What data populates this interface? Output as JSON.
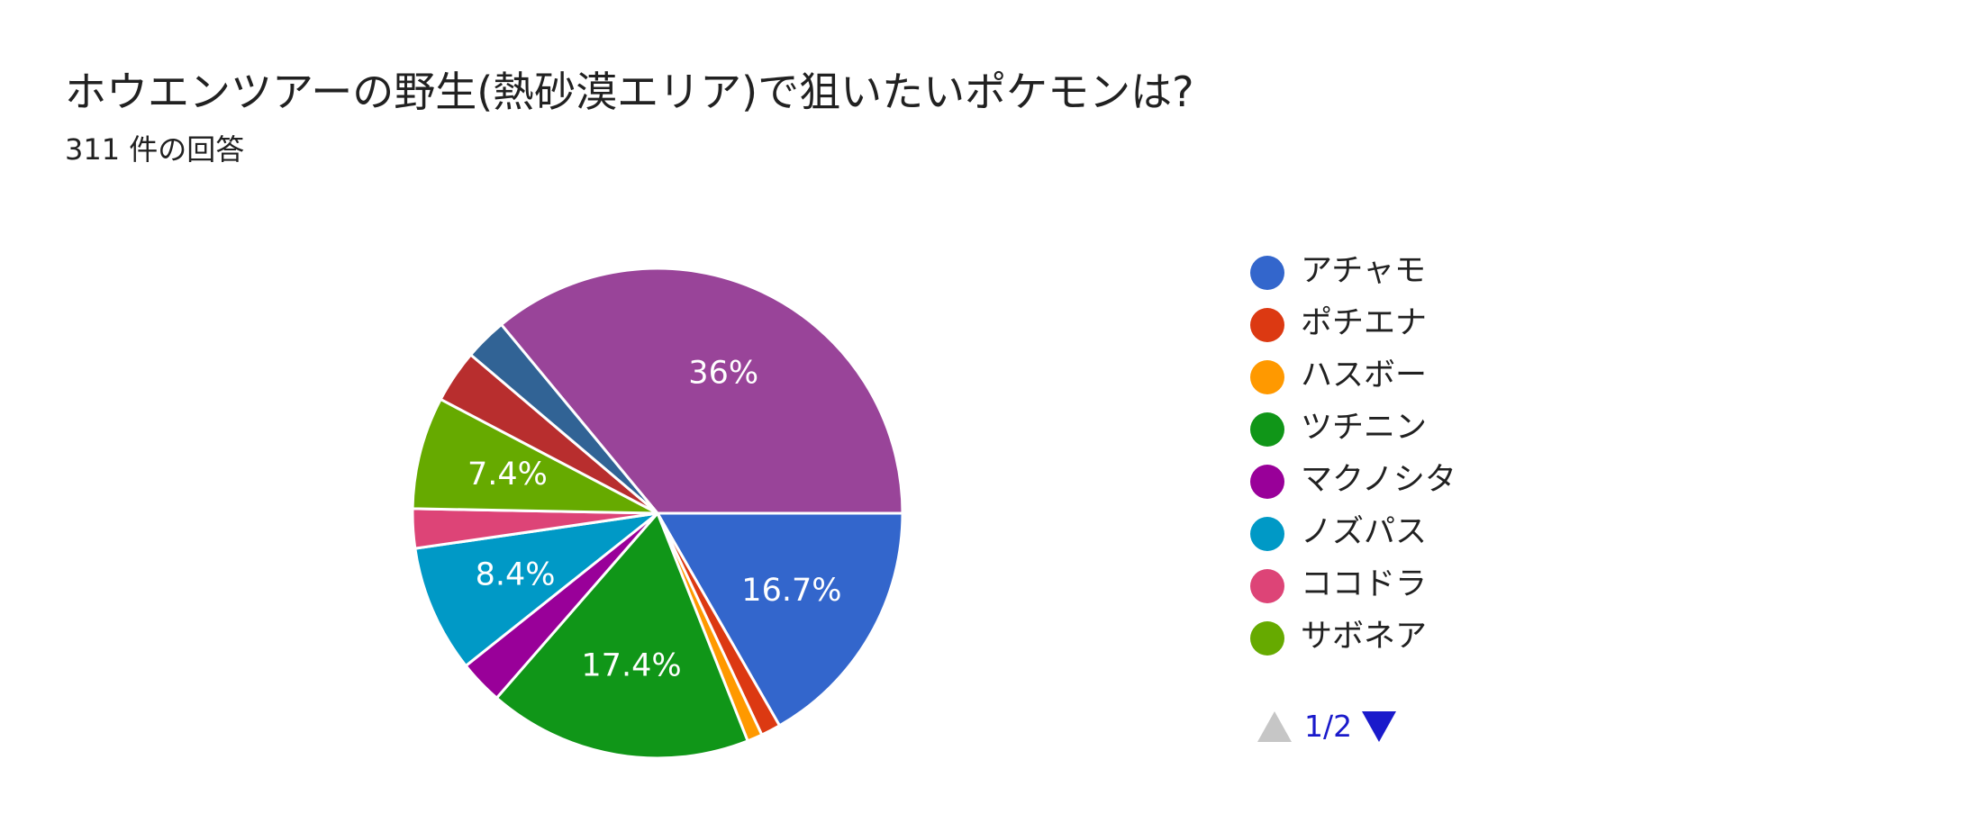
{
  "title": "ホウエンツアーの野生(熱砂漠エリア)で狙いたいポケモンは?",
  "subtitle": "311 件の回答",
  "chart_data": {
    "type": "pie",
    "title": "ホウエンツアーの野生(熱砂漠エリア)で狙いたいポケモンは?",
    "slices": [
      {
        "label": "アチャモ",
        "value": 16.7,
        "color": "#3366cc",
        "show_label": true
      },
      {
        "label": "ポチエナ",
        "value": 1.3,
        "color": "#dc3912",
        "show_label": false
      },
      {
        "label": "ハスボー",
        "value": 1.0,
        "color": "#ff9900",
        "show_label": false
      },
      {
        "label": "ツチニン",
        "value": 17.4,
        "color": "#109618",
        "show_label": true
      },
      {
        "label": "マクノシタ",
        "value": 2.9,
        "color": "#990099",
        "show_label": false
      },
      {
        "label": "ノズパス",
        "value": 8.4,
        "color": "#0099c6",
        "show_label": true
      },
      {
        "label": "ココドラ",
        "value": 2.6,
        "color": "#dd4477",
        "show_label": false
      },
      {
        "label": "サボネア",
        "value": 7.4,
        "color": "#66aa00",
        "show_label": true
      },
      {
        "label": "",
        "value": 3.5,
        "color": "#b82e2e",
        "show_label": false
      },
      {
        "label": "",
        "value": 2.8,
        "color": "#316395",
        "show_label": false
      },
      {
        "label": "",
        "value": 36.0,
        "color": "#994499",
        "show_label": true
      }
    ],
    "slice_labels": [
      "16.7%",
      "",
      "",
      "17.4%",
      "",
      "8.4%",
      "",
      "7.4%",
      "",
      "",
      "36%"
    ],
    "start_direction": "right",
    "direction": "clockwise",
    "legend_position": "right"
  },
  "legend": {
    "items": [
      {
        "label": "アチャモ",
        "color": "#3366cc"
      },
      {
        "label": "ポチエナ",
        "color": "#dc3912"
      },
      {
        "label": "ハスボー",
        "color": "#ff9900"
      },
      {
        "label": "ツチニン",
        "color": "#109618"
      },
      {
        "label": "マクノシタ",
        "color": "#990099"
      },
      {
        "label": "ノズパス",
        "color": "#0099c6"
      },
      {
        "label": "ココドラ",
        "color": "#dd4477"
      },
      {
        "label": "サボネア",
        "color": "#66aa00"
      }
    ],
    "page_text": "1/2"
  }
}
